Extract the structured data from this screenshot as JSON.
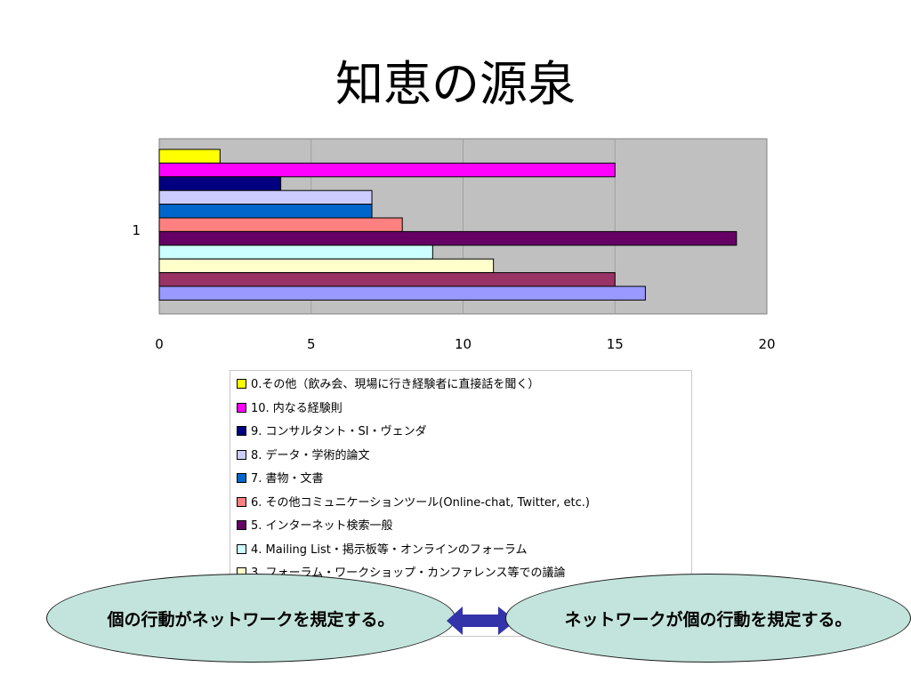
{
  "slide": {
    "title": "知恵の源泉",
    "callout_left": "個の行動がネットワークを規定する。",
    "callout_right": "ネットワークが個の行動を規定する。"
  },
  "colors": {
    "plot_background": "#c0c0c0",
    "callout_fill": "#c3e4dc",
    "arrow": "#3333aa"
  },
  "chart_data": {
    "type": "bar",
    "orientation": "horizontal",
    "categories": [
      "1"
    ],
    "xlim": [
      0,
      20
    ],
    "x_ticks": [
      "0",
      "5",
      "10",
      "15",
      "20"
    ],
    "grid": true,
    "legend_position": "bottom",
    "series": [
      {
        "name": "0.その他（飲み会、現場に行き経験者に直接話を聞く）",
        "values": [
          2
        ],
        "color": "#ffff00"
      },
      {
        "name": "10. 内なる経験則",
        "values": [
          15
        ],
        "color": "#ff00ff"
      },
      {
        "name": "9. コンサルタント・SI・ヴェンダ",
        "values": [
          4
        ],
        "color": "#000080"
      },
      {
        "name": "8. データ・学術的論文",
        "values": [
          7
        ],
        "color": "#ccccff"
      },
      {
        "name": "7. 書物・文書",
        "values": [
          7
        ],
        "color": "#0066cc"
      },
      {
        "name": "6. その他コミュニケーションツール(Online-chat, Twitter, etc.)",
        "values": [
          8
        ],
        "color": "#ff8080"
      },
      {
        "name": "5. インターネット検索一般",
        "values": [
          19
        ],
        "color": "#660066"
      },
      {
        "name": "4. Mailing List・掲示板等・オンラインのフォーラム",
        "values": [
          9
        ],
        "color": "#ccffff"
      },
      {
        "name": "3. フォーラム・ワークショップ・カンファレンス等での議論",
        "values": [
          11
        ],
        "color": "#ffffcc"
      },
      {
        "name": "",
        "values": [
          15
        ],
        "color": "#993366"
      },
      {
        "name": "",
        "values": [
          16
        ],
        "color": "#9999ff"
      }
    ]
  }
}
